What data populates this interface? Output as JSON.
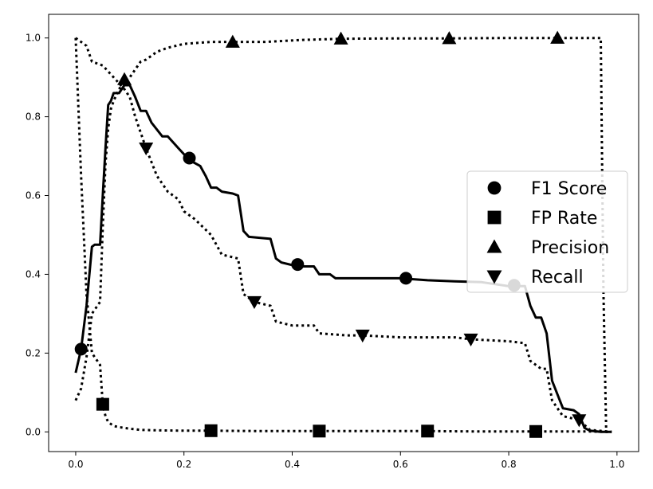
{
  "chart_data": {
    "type": "line",
    "title": "",
    "xlabel": "",
    "ylabel": "",
    "xlim": [
      -0.05,
      1.04
    ],
    "ylim": [
      -0.05,
      1.06
    ],
    "xticks": [
      "0.0",
      "0.2",
      "0.4",
      "0.6",
      "0.8",
      "1.0"
    ],
    "yticks": [
      "0.0",
      "0.2",
      "0.4",
      "0.6",
      "0.8",
      "1.0"
    ],
    "grid": false,
    "legend_position": "center-right",
    "series": [
      {
        "name": "F1 Score",
        "style": "solid",
        "marker": "circle",
        "color": "#000000",
        "x": [
          0.0,
          0.01,
          0.02,
          0.03,
          0.035,
          0.045,
          0.05,
          0.055,
          0.06,
          0.065,
          0.07,
          0.08,
          0.09,
          0.1,
          0.11,
          0.12,
          0.13,
          0.14,
          0.16,
          0.17,
          0.19,
          0.21,
          0.23,
          0.24,
          0.25,
          0.26,
          0.27,
          0.29,
          0.3,
          0.31,
          0.32,
          0.36,
          0.37,
          0.38,
          0.41,
          0.44,
          0.45,
          0.47,
          0.48,
          0.52,
          0.6,
          0.65,
          0.7,
          0.75,
          0.8,
          0.83,
          0.84,
          0.85,
          0.86,
          0.87,
          0.88,
          0.9,
          0.92,
          0.93,
          0.94,
          0.95,
          0.97,
          0.99
        ],
        "y": [
          0.15,
          0.21,
          0.32,
          0.47,
          0.475,
          0.475,
          0.6,
          0.72,
          0.83,
          0.84,
          0.86,
          0.86,
          0.88,
          0.88,
          0.85,
          0.815,
          0.815,
          0.785,
          0.75,
          0.75,
          0.72,
          0.69,
          0.675,
          0.65,
          0.62,
          0.62,
          0.61,
          0.605,
          0.6,
          0.51,
          0.495,
          0.49,
          0.44,
          0.43,
          0.42,
          0.42,
          0.4,
          0.4,
          0.39,
          0.39,
          0.39,
          0.385,
          0.382,
          0.38,
          0.37,
          0.37,
          0.32,
          0.29,
          0.29,
          0.25,
          0.13,
          0.06,
          0.055,
          0.045,
          0.01,
          0.003,
          0.0,
          0.0
        ],
        "markers_x": [
          0.01,
          0.21,
          0.41,
          0.61,
          0.81
        ],
        "markers_y": [
          0.21,
          0.695,
          0.425,
          0.39,
          0.372
        ]
      },
      {
        "name": "FP Rate",
        "style": "dotted",
        "marker": "square",
        "color": "#000000",
        "x": [
          0.0,
          0.01,
          0.02,
          0.03,
          0.04,
          0.045,
          0.05,
          0.055,
          0.06,
          0.07,
          0.08,
          0.1,
          0.12,
          0.15,
          0.2,
          0.25,
          0.35,
          0.45,
          0.55,
          0.65,
          0.75,
          0.85,
          0.9,
          0.95,
          0.99
        ],
        "y": [
          1.0,
          0.65,
          0.35,
          0.2,
          0.18,
          0.17,
          0.07,
          0.04,
          0.025,
          0.015,
          0.012,
          0.008,
          0.005,
          0.004,
          0.003,
          0.003,
          0.002,
          0.002,
          0.002,
          0.002,
          0.001,
          0.001,
          0.001,
          0.001,
          0.0
        ],
        "markers_x": [
          0.05,
          0.25,
          0.45,
          0.65,
          0.85
        ],
        "markers_y": [
          0.07,
          0.003,
          0.002,
          0.002,
          0.001
        ]
      },
      {
        "name": "Precision",
        "style": "dotted",
        "marker": "triangle-up",
        "color": "#000000",
        "x": [
          0.0,
          0.01,
          0.02,
          0.03,
          0.04,
          0.045,
          0.05,
          0.055,
          0.06,
          0.065,
          0.07,
          0.08,
          0.09,
          0.1,
          0.11,
          0.12,
          0.13,
          0.15,
          0.17,
          0.2,
          0.25,
          0.29,
          0.35,
          0.42,
          0.49,
          0.6,
          0.69,
          0.8,
          0.89,
          0.97,
          0.975,
          0.98,
          0.99
        ],
        "y": [
          0.08,
          0.11,
          0.19,
          0.3,
          0.32,
          0.33,
          0.52,
          0.68,
          0.77,
          0.82,
          0.84,
          0.87,
          0.89,
          0.9,
          0.92,
          0.94,
          0.945,
          0.965,
          0.975,
          0.985,
          0.99,
          0.99,
          0.99,
          0.995,
          0.998,
          0.999,
          0.999,
          1.0,
          1.0,
          1.0,
          0.35,
          0.0,
          0.0
        ],
        "markers_x": [
          0.09,
          0.29,
          0.49,
          0.69,
          0.89
        ],
        "markers_y": [
          0.895,
          0.99,
          0.998,
          0.999,
          1.0
        ]
      },
      {
        "name": "Recall",
        "style": "dotted",
        "marker": "triangle-down",
        "color": "#000000",
        "x": [
          0.0,
          0.01,
          0.02,
          0.03,
          0.05,
          0.07,
          0.09,
          0.1,
          0.11,
          0.13,
          0.15,
          0.17,
          0.19,
          0.2,
          0.22,
          0.25,
          0.27,
          0.3,
          0.31,
          0.33,
          0.36,
          0.37,
          0.4,
          0.44,
          0.45,
          0.5,
          0.53,
          0.6,
          0.7,
          0.73,
          0.8,
          0.83,
          0.84,
          0.86,
          0.87,
          0.88,
          0.9,
          0.93,
          0.95,
          0.99
        ],
        "y": [
          1.0,
          0.99,
          0.98,
          0.94,
          0.93,
          0.9,
          0.87,
          0.85,
          0.8,
          0.72,
          0.65,
          0.61,
          0.59,
          0.56,
          0.54,
          0.5,
          0.45,
          0.44,
          0.35,
          0.33,
          0.32,
          0.28,
          0.27,
          0.27,
          0.25,
          0.245,
          0.245,
          0.24,
          0.24,
          0.235,
          0.23,
          0.225,
          0.18,
          0.16,
          0.16,
          0.08,
          0.04,
          0.03,
          0.005,
          0.0
        ],
        "markers_x": [
          0.13,
          0.33,
          0.53,
          0.73,
          0.93
        ],
        "markers_y": [
          0.72,
          0.33,
          0.245,
          0.235,
          0.03
        ]
      }
    ]
  }
}
